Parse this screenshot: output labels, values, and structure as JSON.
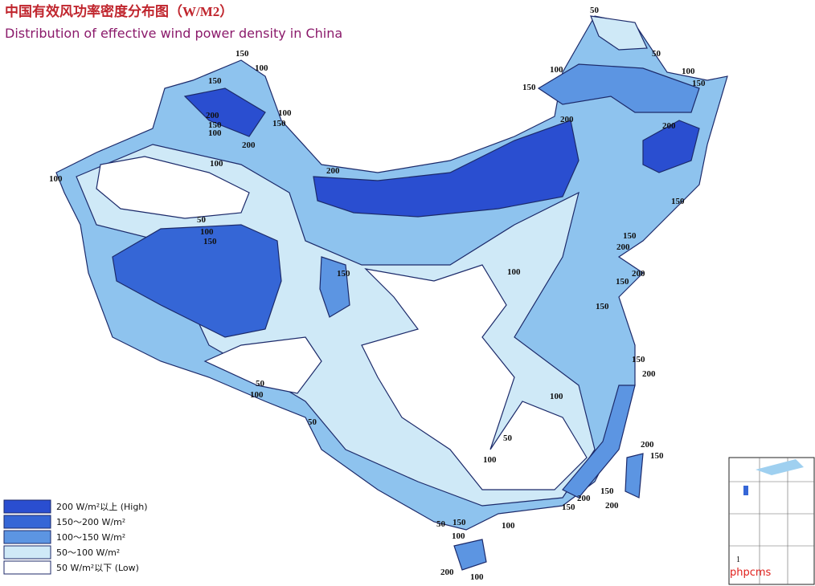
{
  "title": "中国有效风功率密度分布图（W/M2）",
  "subtitle": "Distribution of effective wind power density in China",
  "legend": [
    "200 W/m²以上 (High)",
    "150～200 W/m²",
    "100～150 W/m²",
    "50～100 W/m²",
    "50 W/m²以下 (Low)"
  ],
  "contour_labels": [
    50,
    50,
    100,
    100,
    150,
    150,
    200,
    200,
    150,
    150,
    200,
    200,
    150,
    150,
    150,
    200,
    150,
    100,
    150,
    200,
    150,
    100,
    100,
    150,
    200,
    100,
    200,
    100,
    50,
    100,
    150,
    150,
    100,
    50,
    100,
    50,
    100,
    50,
    100,
    200,
    150,
    150,
    200,
    200,
    150,
    50,
    150,
    100,
    100,
    200,
    100
  ],
  "inset_label": "1",
  "watermark": "phpcms"
}
